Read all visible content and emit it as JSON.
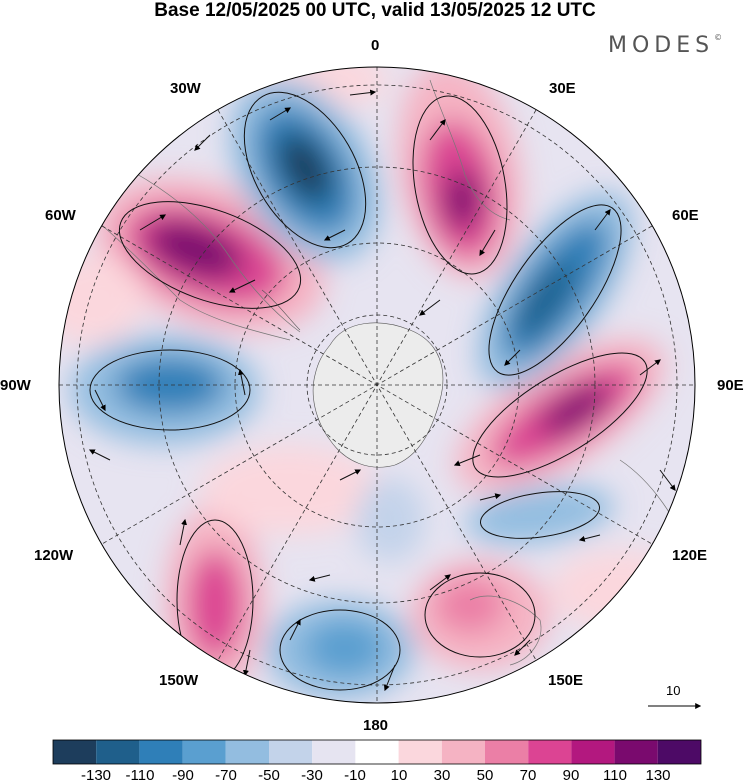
{
  "header": {
    "title": "Base 12/05/2025 00 UTC, valid 13/05/2025 12 UTC",
    "brand": "MODES",
    "brand_mark": "©"
  },
  "map": {
    "projection": "south-polar-stereographic",
    "longitude_labels": {
      "lon_0": "0",
      "lon_30e": "30E",
      "lon_60e": "60E",
      "lon_90e": "90E",
      "lon_120e": "120E",
      "lon_150e": "150E",
      "lon_180": "180",
      "lon_150w": "150W",
      "lon_120w": "120W",
      "lon_90w": "90W",
      "lon_60w": "60W",
      "lon_30w": "30W"
    },
    "vector_reference": "10",
    "anomaly_centers": [
      {
        "name": "pos-south-america",
        "lon": -55,
        "lat": -45,
        "value": 120
      },
      {
        "name": "neg-south-atlantic",
        "lon": -20,
        "lat": -45,
        "value": -120
      },
      {
        "name": "pos-southern-africa",
        "lon": 20,
        "lat": -45,
        "value": 100
      },
      {
        "name": "neg-indian-west",
        "lon": 50,
        "lat": -50,
        "value": -110
      },
      {
        "name": "pos-indian-east",
        "lon": 85,
        "lat": -50,
        "value": 100
      },
      {
        "name": "neg-southeast-pacific",
        "lon": -85,
        "lat": -45,
        "value": -90
      },
      {
        "name": "pos-pacific-east",
        "lon": -145,
        "lat": -45,
        "value": 80
      },
      {
        "name": "neg-pacific",
        "lon": 170,
        "lat": -50,
        "value": -60
      },
      {
        "name": "pos-new-zealand",
        "lon": 148,
        "lat": -45,
        "value": 50
      },
      {
        "name": "neg-australia",
        "lon": 115,
        "lat": -45,
        "value": -40
      },
      {
        "name": "neg-ross-sea",
        "lon": 170,
        "lat": -65,
        "value": -30
      }
    ]
  },
  "colorbar": {
    "ticks": [
      "-130",
      "-110",
      "-90",
      "-70",
      "-50",
      "-30",
      "-10",
      "10",
      "30",
      "50",
      "70",
      "90",
      "110",
      "130"
    ],
    "colors": [
      "#1d3d5c",
      "#1f5f8b",
      "#2f7fb8",
      "#5a9fd0",
      "#93bde0",
      "#c3d3ea",
      "#e6e4f1",
      "#ffffff",
      "#fbd7dd",
      "#f5b3c3",
      "#eb7fa6",
      "#dc4493",
      "#b3187f",
      "#7a0a6e",
      "#4d0a66"
    ]
  }
}
